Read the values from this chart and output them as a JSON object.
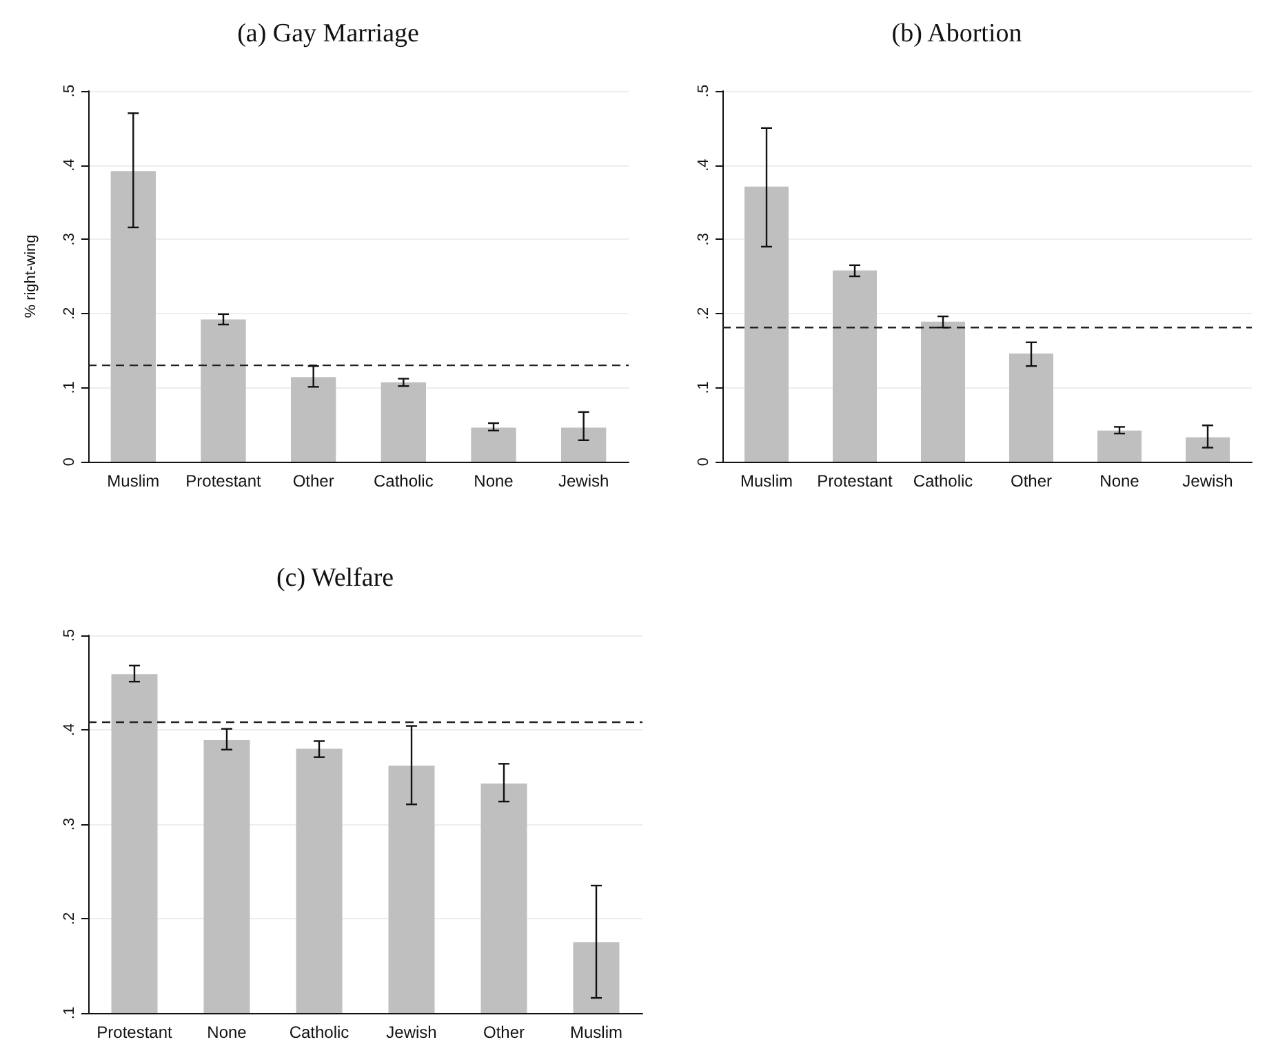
{
  "chart_data": [
    {
      "type": "bar",
      "title": "(a) Gay Marriage",
      "ylabel": "% right-wing",
      "categories": [
        "Muslim",
        "Protestant",
        "Other",
        "Catholic",
        "None",
        "Jewish"
      ],
      "values": [
        0.392,
        0.192,
        0.114,
        0.107,
        0.046,
        0.046
      ],
      "errors": [
        [
          0.316,
          0.47
        ],
        [
          0.185,
          0.199
        ],
        [
          0.101,
          0.129
        ],
        [
          0.102,
          0.112
        ],
        [
          0.042,
          0.052
        ],
        [
          0.029,
          0.067
        ]
      ],
      "color": "#bfbfbf",
      "ylim": [
        0,
        0.5
      ],
      "yticks": [
        0,
        {
          "value": 0.1,
          "label": ".1"
        },
        {
          "value": 0.2,
          "label": ".2"
        },
        {
          "value": 0.3,
          "label": ".3"
        },
        {
          "value": 0.4,
          "label": ".4"
        },
        {
          "value": 0.5,
          "label": ".5"
        }
      ],
      "grid": "y",
      "ref_lines": [
        {
          "axis": "y",
          "value": 0.13,
          "line_style": "dashed"
        }
      ]
    },
    {
      "type": "bar",
      "title": "(b) Abortion",
      "categories": [
        "Muslim",
        "Protestant",
        "Catholic",
        "Other",
        "None",
        "Jewish"
      ],
      "values": [
        0.371,
        0.258,
        0.189,
        0.146,
        0.042,
        0.033
      ],
      "errors": [
        [
          0.29,
          0.45
        ],
        [
          0.25,
          0.265
        ],
        [
          0.181,
          0.196
        ],
        [
          0.129,
          0.161
        ],
        [
          0.038,
          0.047
        ],
        [
          0.019,
          0.049
        ]
      ],
      "color": "#bfbfbf",
      "ylim": [
        0,
        0.5
      ],
      "yticks": [
        0,
        {
          "value": 0.1,
          "label": ".1"
        },
        {
          "value": 0.2,
          "label": ".2"
        },
        {
          "value": 0.3,
          "label": ".3"
        },
        {
          "value": 0.4,
          "label": ".4"
        },
        {
          "value": 0.5,
          "label": ".5"
        }
      ],
      "grid": "y",
      "ref_lines": [
        {
          "axis": "y",
          "value": 0.181,
          "line_style": "dashed"
        }
      ]
    },
    {
      "type": "bar",
      "title": "(c) Welfare",
      "categories": [
        "Protestant",
        "None",
        "Catholic",
        "Jewish",
        "Other",
        "Muslim"
      ],
      "values": [
        0.459,
        0.389,
        0.38,
        0.362,
        0.343,
        0.175
      ],
      "errors": [
        [
          0.451,
          0.468
        ],
        [
          0.379,
          0.401
        ],
        [
          0.371,
          0.388
        ],
        [
          0.321,
          0.404
        ],
        [
          0.324,
          0.364
        ],
        [
          0.116,
          0.235
        ]
      ],
      "color": "#bfbfbf",
      "ylim": [
        0.1,
        0.5
      ],
      "yticks": [
        {
          "value": 0.1,
          "label": ".1"
        },
        {
          "value": 0.2,
          "label": ".2"
        },
        {
          "value": 0.3,
          "label": ".3"
        },
        {
          "value": 0.4,
          "label": ".4"
        },
        {
          "value": 0.5,
          "label": ".5"
        }
      ],
      "grid": "y",
      "ref_lines": [
        {
          "axis": "y",
          "value": 0.408,
          "line_style": "dashed"
        }
      ]
    }
  ]
}
